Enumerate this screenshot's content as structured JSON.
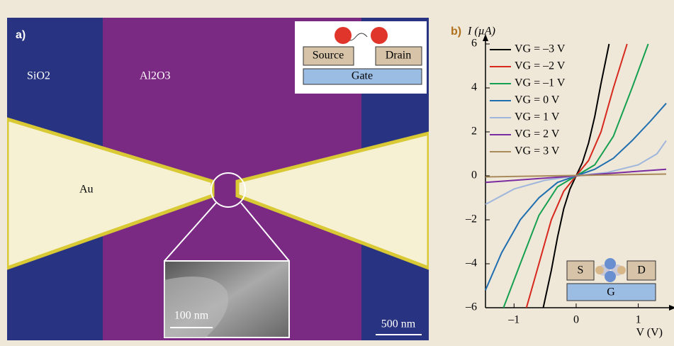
{
  "panel_a": {
    "label": "a)",
    "texts": {
      "sio2": "SiO2",
      "al2o3": "Al2O3",
      "au": "Au"
    },
    "schematic": {
      "source": "Source",
      "drain": "Drain",
      "gate": "Gate"
    },
    "inset_scale": "100 nm",
    "scale_bar": "500 nm"
  },
  "chart_data": {
    "type": "line",
    "panel_label": "b)",
    "y_label": "I (µA)",
    "x_label": "V (V)",
    "xlim": [
      -1.46,
      1.45
    ],
    "ylim": [
      -6,
      6
    ],
    "xticks": [
      {
        "value": -1,
        "label": "–1"
      },
      0,
      1
    ],
    "yticks": [
      {
        "value": -6,
        "label": "–6"
      },
      {
        "value": -4,
        "label": "–4"
      },
      {
        "value": -2,
        "label": "–2"
      },
      0,
      2,
      4,
      6
    ],
    "legend": "upper-left",
    "series": [
      {
        "name": "VG = –3 V",
        "color": "#000000",
        "x": [
          -0.53,
          -0.4,
          -0.3,
          -0.2,
          -0.1,
          0,
          0.1,
          0.2,
          0.3,
          0.4,
          0.53
        ],
        "values": [
          -6,
          -4.3,
          -2.8,
          -1.5,
          -0.6,
          0,
          0.6,
          1.5,
          2.7,
          4.2,
          6
        ]
      },
      {
        "name": "VG = –2 V",
        "color": "#d7281e",
        "x": [
          -0.8,
          -0.6,
          -0.4,
          -0.2,
          0,
          0.2,
          0.4,
          0.6,
          0.82
        ],
        "values": [
          -6,
          -4,
          -2,
          -0.7,
          0,
          0.7,
          2,
          4,
          6
        ]
      },
      {
        "name": "VG = –1 V",
        "color": "#14a050",
        "x": [
          -1.17,
          -0.9,
          -0.6,
          -0.3,
          0,
          0.3,
          0.6,
          0.9,
          1.16
        ],
        "values": [
          -6,
          -4,
          -1.8,
          -0.5,
          0,
          0.5,
          1.8,
          4,
          6
        ]
      },
      {
        "name": "VG = 0 V",
        "color": "#1f6fb0",
        "x": [
          -1.46,
          -1.2,
          -0.9,
          -0.6,
          -0.3,
          0,
          0.3,
          0.6,
          0.9,
          1.2,
          1.45
        ],
        "values": [
          -5.2,
          -3.5,
          -2,
          -1,
          -0.3,
          0,
          0.3,
          0.8,
          1.6,
          2.5,
          3.3
        ]
      },
      {
        "name": "VG = 1 V",
        "color": "#9fb6dc",
        "x": [
          -1.46,
          -1,
          -0.5,
          0,
          0.5,
          1,
          1.3,
          1.45
        ],
        "values": [
          -1.3,
          -0.6,
          -0.2,
          0,
          0.15,
          0.5,
          1,
          1.6
        ]
      },
      {
        "name": "VG = 2 V",
        "color": "#7a2ca0",
        "x": [
          -1.46,
          0,
          1.45
        ],
        "values": [
          -0.3,
          0,
          0.3
        ]
      },
      {
        "name": "VG = 3 V",
        "color": "#a98a5a",
        "x": [
          -1.46,
          1.45
        ],
        "values": [
          -0.05,
          0.08
        ]
      }
    ],
    "inset": {
      "s": "S",
      "d": "D",
      "g": "G"
    }
  }
}
